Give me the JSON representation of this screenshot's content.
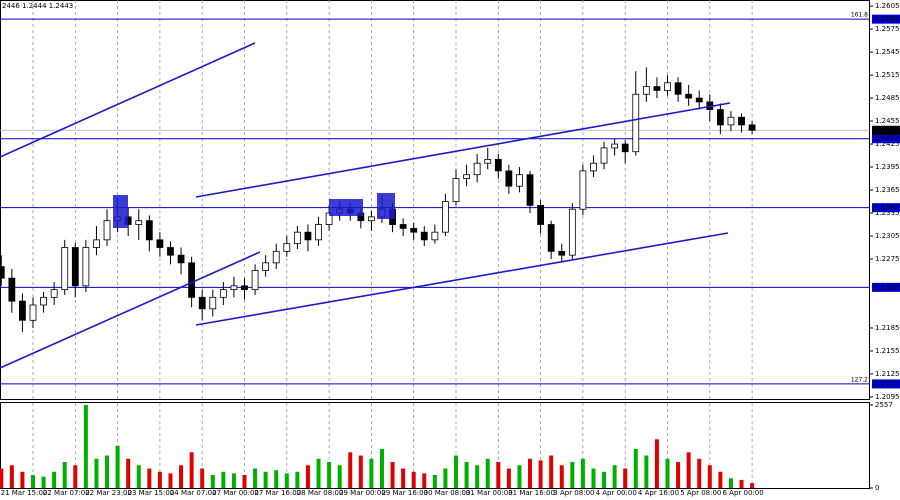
{
  "chart_data": {
    "type": "candlestick",
    "header": "2446 1.2444 1.2443",
    "categories": [
      null,
      null,
      null,
      "21 Mar 15:00",
      null,
      null,
      null,
      "22 Mar 07:00",
      null,
      null,
      null,
      "22 Mar 23:00",
      null,
      null,
      null,
      "23 Mar 15:00",
      null,
      null,
      null,
      "24 Mar 07:00",
      null,
      null,
      null,
      "27 Mar 00:00",
      null,
      null,
      null,
      "27 Mar 16:00",
      null,
      null,
      null,
      "28 Mar 08:00",
      null,
      null,
      null,
      "29 Mar 00:00",
      null,
      null,
      null,
      "29 Mar 16:00",
      null,
      null,
      null,
      "30 Mar 08:00",
      null,
      null,
      null,
      "31 Mar 00:00",
      null,
      null,
      null,
      "31 Mar 16:00",
      null,
      null,
      null,
      "3 Apr 08:00",
      null,
      null,
      null,
      "4 Apr 00:00",
      null,
      null,
      null,
      "4 Apr 16:00",
      null,
      null,
      null,
      "5 Apr 08:00",
      null,
      null,
      null,
      "6 Apr 00:00"
    ],
    "open": [
      1.2265,
      1.225,
      1.222,
      1.2195,
      1.2215,
      1.2225,
      1.2235,
      1.229,
      1.224,
      1.229,
      1.23,
      1.2325,
      1.233,
      1.232,
      1.2325,
      1.23,
      1.229,
      1.228,
      1.227,
      1.2225,
      1.221,
      1.2225,
      1.2235,
      1.224,
      1.2235,
      1.226,
      1.227,
      1.2285,
      1.2295,
      1.231,
      1.23,
      1.232,
      1.2335,
      1.234,
      1.2335,
      1.2325,
      1.233,
      1.234,
      1.232,
      1.2315,
      1.231,
      1.23,
      1.231,
      1.235,
      1.238,
      1.2385,
      1.24,
      1.2405,
      1.239,
      1.237,
      1.2385,
      1.2345,
      1.232,
      1.2285,
      1.228,
      1.234,
      1.239,
      1.24,
      1.242,
      1.2425,
      1.2415,
      1.249,
      1.25,
      1.2495,
      1.2505,
      1.249,
      1.2485,
      1.248,
      1.247,
      1.245,
      1.246,
      1.245
    ],
    "high": [
      1.228,
      1.2262,
      1.223,
      1.2225,
      1.2232,
      1.2245,
      1.23,
      1.2296,
      1.23,
      1.2318,
      1.234,
      1.2355,
      1.2342,
      1.234,
      1.2332,
      1.231,
      1.2298,
      1.229,
      1.2278,
      1.2235,
      1.2235,
      1.2245,
      1.2252,
      1.225,
      1.2268,
      1.228,
      1.2295,
      1.2305,
      1.2318,
      1.232,
      1.233,
      1.2345,
      1.235,
      1.2348,
      1.2342,
      1.2338,
      1.236,
      1.2348,
      1.2328,
      1.2322,
      1.2318,
      1.232,
      1.236,
      1.2392,
      1.2398,
      1.2412,
      1.242,
      1.2412,
      1.2398,
      1.2395,
      1.239,
      1.2352,
      1.2325,
      1.2295,
      1.2348,
      1.2398,
      1.241,
      1.2428,
      1.2432,
      1.243,
      1.252,
      1.2525,
      1.2512,
      1.2515,
      1.2512,
      1.2502,
      1.2495,
      1.249,
      1.2478,
      1.2468,
      1.2465,
      1.2455
    ],
    "low": [
      1.224,
      1.2205,
      1.218,
      1.2185,
      1.2205,
      1.2215,
      1.2228,
      1.2225,
      1.2232,
      1.228,
      1.2292,
      1.231,
      1.2305,
      1.23,
      1.2285,
      1.2278,
      1.2268,
      1.2255,
      1.2212,
      1.2195,
      1.22,
      1.2215,
      1.2225,
      1.2222,
      1.2228,
      1.2252,
      1.2262,
      1.2278,
      1.2288,
      1.2285,
      1.2292,
      1.2312,
      1.2325,
      1.2325,
      1.2315,
      1.2312,
      1.2322,
      1.231,
      1.2305,
      1.23,
      1.2292,
      1.2295,
      1.2305,
      1.2345,
      1.237,
      1.2375,
      1.2392,
      1.238,
      1.236,
      1.2362,
      1.2335,
      1.2308,
      1.2275,
      1.227,
      1.2275,
      1.2332,
      1.2382,
      1.2392,
      1.241,
      1.24,
      1.241,
      1.248,
      1.2485,
      1.2488,
      1.248,
      1.2475,
      1.247,
      1.2455,
      1.2438,
      1.2442,
      1.244,
      1.2438
    ],
    "close": [
      1.225,
      1.222,
      1.2195,
      1.2215,
      1.2225,
      1.2235,
      1.229,
      1.224,
      1.229,
      1.23,
      1.2325,
      1.233,
      1.232,
      1.2325,
      1.23,
      1.229,
      1.228,
      1.227,
      1.2225,
      1.221,
      1.2225,
      1.2235,
      1.224,
      1.2235,
      1.226,
      1.227,
      1.2285,
      1.2295,
      1.231,
      1.23,
      1.232,
      1.2335,
      1.234,
      1.2335,
      1.2325,
      1.233,
      1.234,
      1.232,
      1.2315,
      1.231,
      1.23,
      1.231,
      1.235,
      1.238,
      1.2385,
      1.24,
      1.2405,
      1.239,
      1.237,
      1.2385,
      1.2345,
      1.232,
      1.2285,
      1.228,
      1.234,
      1.239,
      1.24,
      1.242,
      1.2425,
      1.2415,
      1.249,
      1.25,
      1.2495,
      1.2505,
      1.249,
      1.2485,
      1.248,
      1.247,
      1.245,
      1.246,
      1.245,
      1.2443
    ],
    "ylim": [
      1.2091,
      1.2613
    ],
    "yticks": [
      1.2605,
      1.2575,
      1.2545,
      1.2515,
      1.2485,
      1.2455,
      1.2425,
      1.2395,
      1.2365,
      1.2335,
      1.2305,
      1.2275,
      1.2185,
      1.2155,
      1.2125,
      1.2095
    ],
    "levels": [
      {
        "price": 1.2588,
        "label": "161.8"
      },
      {
        "price": 1.2432
      },
      {
        "price": 1.2342
      },
      {
        "price": 1.2238
      },
      {
        "price": 1.2112,
        "label": "127.2"
      }
    ],
    "last_price": 1.2443,
    "level_color": "#0000cc",
    "candle_color": "#000000",
    "grid": true,
    "volume": {
      "values": [
        600,
        700,
        500,
        400,
        350,
        500,
        800,
        700,
        2557,
        900,
        1000,
        1300,
        900,
        700,
        600,
        500,
        450,
        700,
        1100,
        600,
        400,
        500,
        450,
        400,
        600,
        500,
        550,
        450,
        500,
        700,
        900,
        800,
        700,
        1100,
        1000,
        900,
        1200,
        800,
        600,
        500,
        450,
        400,
        600,
        1000,
        800,
        700,
        900,
        800,
        600,
        700,
        900,
        850,
        1000,
        700,
        800,
        900,
        600,
        500,
        700,
        600,
        1200,
        1000,
        1500,
        900,
        800,
        1100,
        900,
        700,
        500,
        300,
        250,
        150
      ],
      "ylim": [
        0,
        2557
      ],
      "yticks": [
        2557,
        0
      ],
      "up_color": "#00b000",
      "down_color": "#e00000"
    }
  }
}
